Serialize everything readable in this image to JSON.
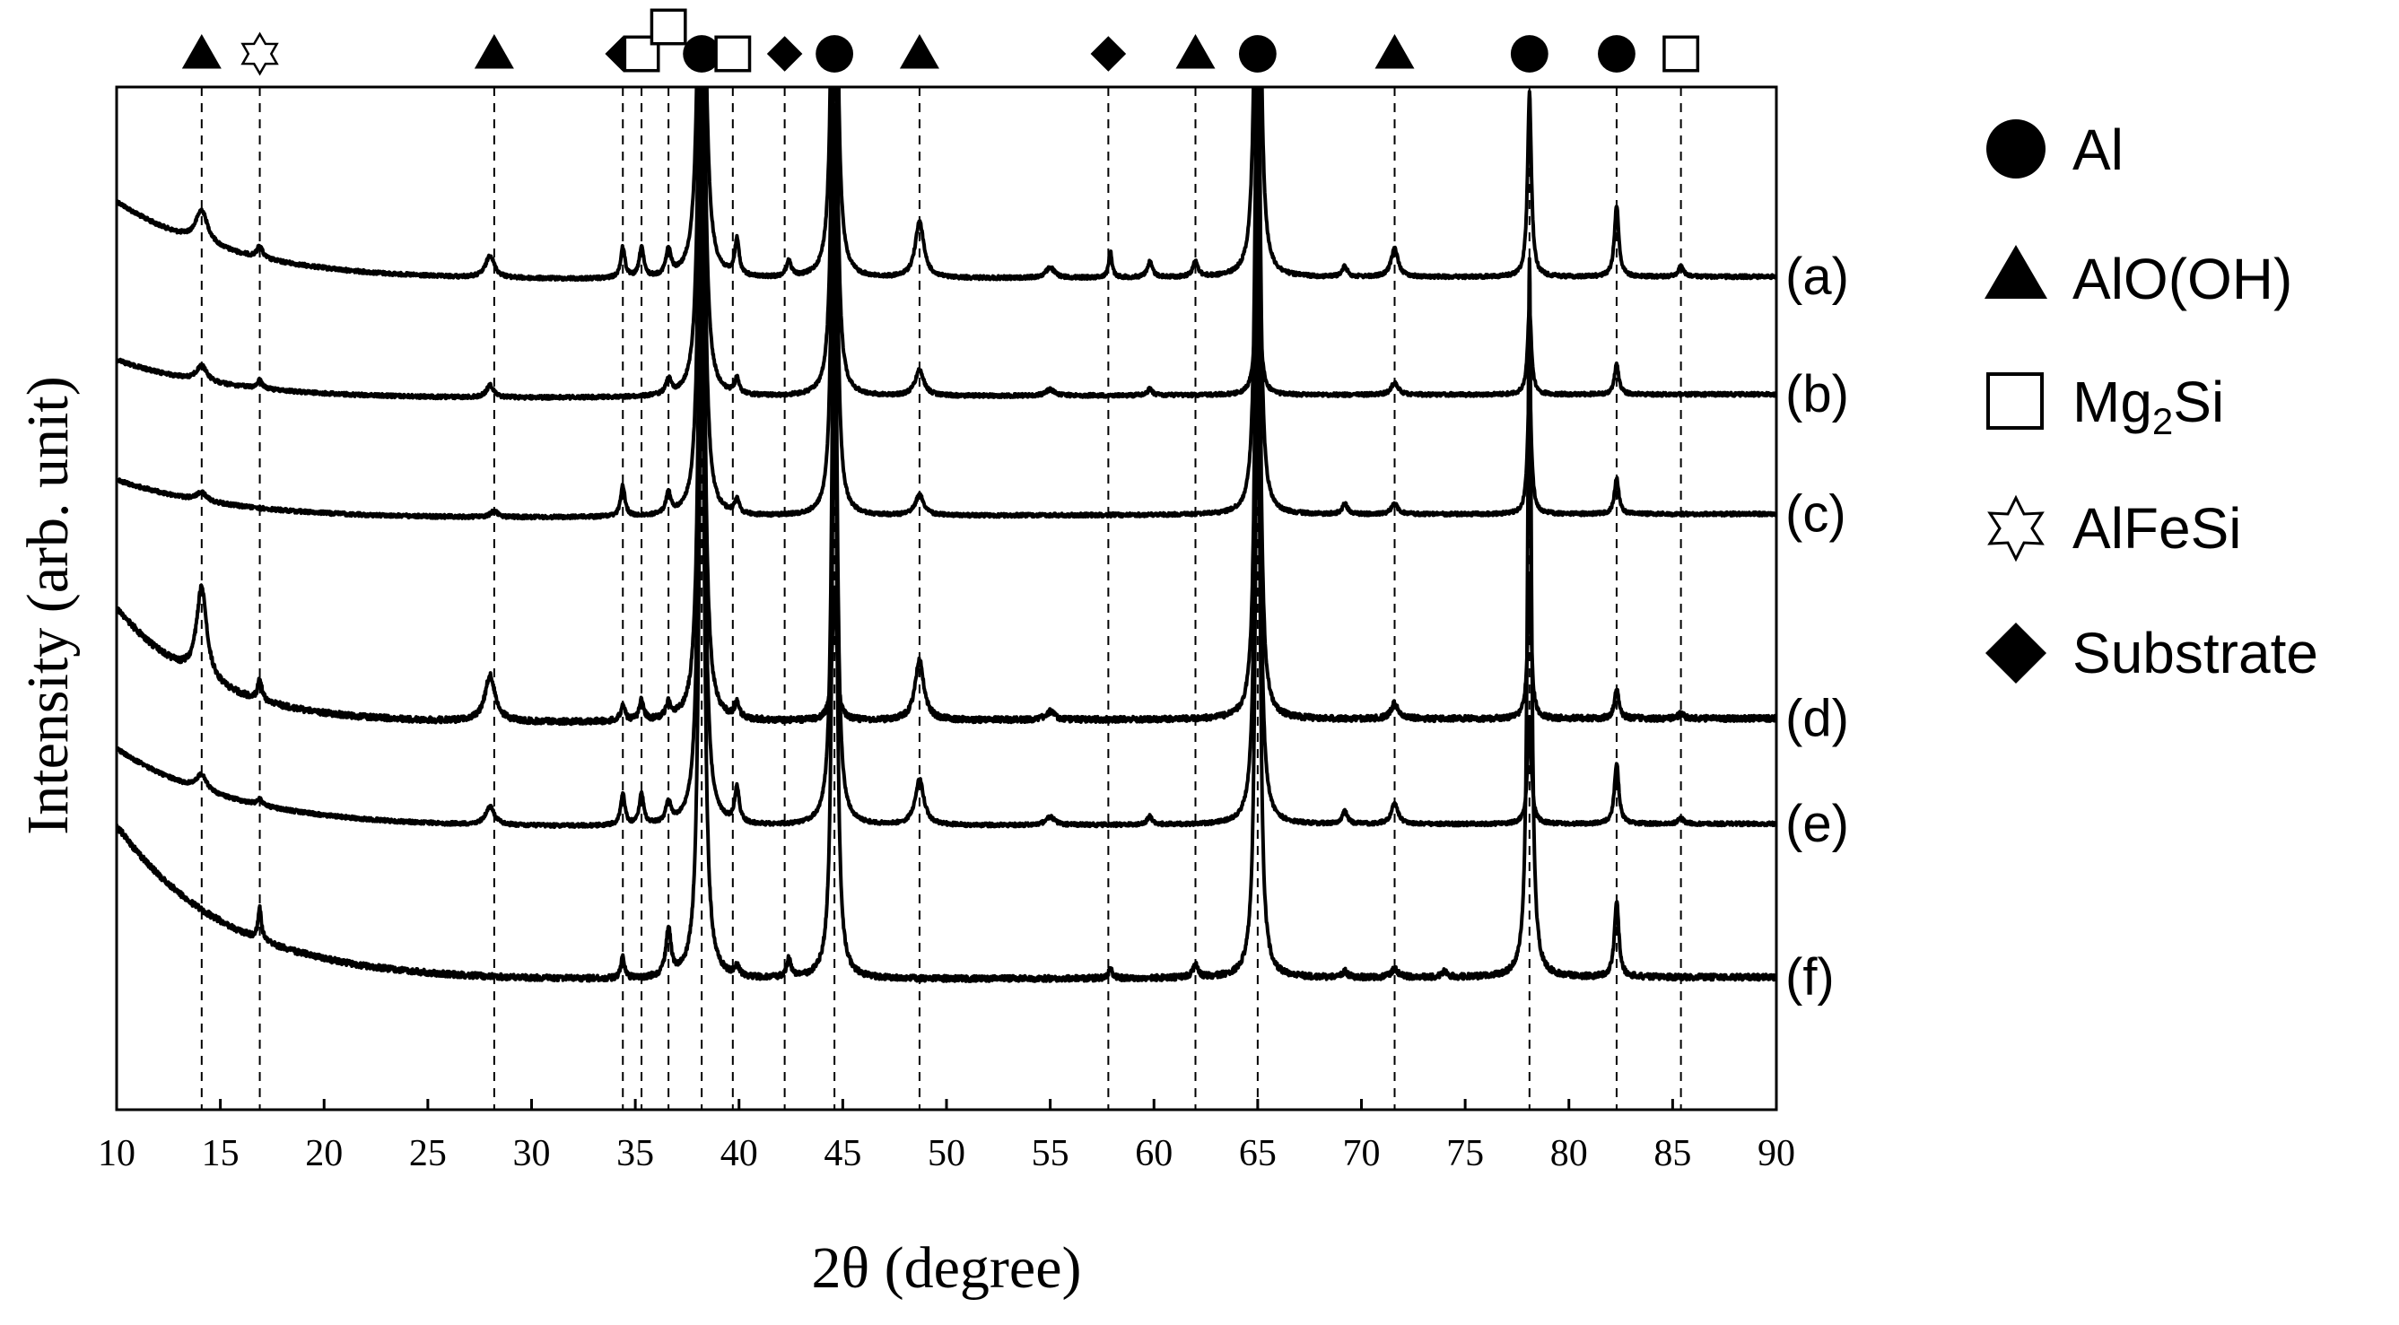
{
  "chart_data": {
    "type": "line",
    "title": "",
    "xlabel": "2θ (degree)",
    "ylabel": "Intensity (arb. unit)",
    "xlim": [
      10,
      90
    ],
    "xticks": [
      "10",
      "15",
      "20",
      "25",
      "30",
      "35",
      "40",
      "45",
      "50",
      "55",
      "60",
      "65",
      "70",
      "75",
      "80",
      "85",
      "90"
    ],
    "ylim": [
      0,
      1
    ],
    "grid": false,
    "legend_position": "right",
    "legend": [
      {
        "marker": "circle",
        "label": "Al"
      },
      {
        "marker": "triangle",
        "label": "AlO(OH)"
      },
      {
        "marker": "square-open",
        "label_main": "Mg",
        "label_sub": "2",
        "label_tail": "Si"
      },
      {
        "marker": "star-open",
        "label": "AlFeSi"
      },
      {
        "marker": "diamond",
        "label": "Substrate"
      }
    ],
    "phase_markers": [
      {
        "x": 14.1,
        "marker": "triangle"
      },
      {
        "x": 16.9,
        "marker": "star-open"
      },
      {
        "x": 28.2,
        "marker": "triangle"
      },
      {
        "x": 34.4,
        "marker": "diamond"
      },
      {
        "x": 35.3,
        "marker": "square-open"
      },
      {
        "x": 36.6,
        "marker": "square-open",
        "raised": true
      },
      {
        "x": 38.2,
        "marker": "circle"
      },
      {
        "x": 39.7,
        "marker": "square-open"
      },
      {
        "x": 42.2,
        "marker": "diamond"
      },
      {
        "x": 44.6,
        "marker": "circle"
      },
      {
        "x": 48.7,
        "marker": "triangle"
      },
      {
        "x": 57.8,
        "marker": "diamond"
      },
      {
        "x": 62.0,
        "marker": "triangle"
      },
      {
        "x": 65.0,
        "marker": "circle"
      },
      {
        "x": 71.6,
        "marker": "triangle"
      },
      {
        "x": 78.1,
        "marker": "circle"
      },
      {
        "x": 82.3,
        "marker": "circle"
      },
      {
        "x": 85.4,
        "marker": "square-open"
      }
    ],
    "reference_lines_x": [
      14.1,
      16.9,
      28.2,
      34.4,
      35.3,
      36.6,
      38.2,
      39.7,
      42.2,
      44.6,
      48.7,
      57.8,
      62.0,
      65.0,
      71.6,
      78.1,
      82.3,
      85.4
    ],
    "series": [
      {
        "name": "(a)",
        "baseline": 0.185,
        "background": {
          "amp": 0.085,
          "decay": 6.0
        },
        "peaks": [
          [
            14.1,
            0.032,
            0.7
          ],
          [
            16.9,
            0.012,
            0.3
          ],
          [
            28.0,
            0.022,
            0.5
          ],
          [
            34.4,
            0.03,
            0.25
          ],
          [
            35.3,
            0.03,
            0.25
          ],
          [
            36.6,
            0.025,
            0.3
          ],
          [
            38.2,
            0.7,
            0.3
          ],
          [
            39.9,
            0.035,
            0.25
          ],
          [
            42.4,
            0.015,
            0.3
          ],
          [
            44.6,
            0.7,
            0.25
          ],
          [
            48.7,
            0.055,
            0.5
          ],
          [
            55.0,
            0.01,
            0.5
          ],
          [
            57.9,
            0.025,
            0.2
          ],
          [
            59.8,
            0.015,
            0.3
          ],
          [
            62.0,
            0.015,
            0.3
          ],
          [
            65.0,
            0.7,
            0.25
          ],
          [
            69.2,
            0.01,
            0.3
          ],
          [
            71.6,
            0.028,
            0.4
          ],
          [
            78.1,
            0.18,
            0.22
          ],
          [
            82.3,
            0.07,
            0.25
          ],
          [
            85.4,
            0.01,
            0.3
          ]
        ]
      },
      {
        "name": "(b)",
        "baseline": 0.3,
        "background": {
          "amp": 0.045,
          "decay": 6.0
        },
        "peaks": [
          [
            14.1,
            0.015,
            0.6
          ],
          [
            16.9,
            0.008,
            0.3
          ],
          [
            28.0,
            0.012,
            0.4
          ],
          [
            36.6,
            0.015,
            0.3
          ],
          [
            38.2,
            0.6,
            0.3
          ],
          [
            39.9,
            0.015,
            0.25
          ],
          [
            44.6,
            0.6,
            0.25
          ],
          [
            48.7,
            0.025,
            0.5
          ],
          [
            55.0,
            0.006,
            0.5
          ],
          [
            59.8,
            0.006,
            0.3
          ],
          [
            65.0,
            0.16,
            0.25
          ],
          [
            71.6,
            0.012,
            0.4
          ],
          [
            78.1,
            0.085,
            0.22
          ],
          [
            82.3,
            0.03,
            0.25
          ]
        ]
      },
      {
        "name": "(c)",
        "baseline": 0.417,
        "background": {
          "amp": 0.045,
          "decay": 6.0
        },
        "peaks": [
          [
            14.1,
            0.008,
            0.6
          ],
          [
            28.2,
            0.006,
            0.4
          ],
          [
            34.4,
            0.03,
            0.25
          ],
          [
            36.6,
            0.02,
            0.3
          ],
          [
            38.2,
            0.6,
            0.3
          ],
          [
            39.9,
            0.015,
            0.25
          ],
          [
            44.6,
            0.6,
            0.25
          ],
          [
            48.7,
            0.02,
            0.5
          ],
          [
            65.0,
            0.6,
            0.25
          ],
          [
            69.2,
            0.01,
            0.3
          ],
          [
            71.6,
            0.01,
            0.4
          ],
          [
            78.1,
            0.125,
            0.22
          ],
          [
            82.3,
            0.035,
            0.25
          ]
        ]
      },
      {
        "name": "(d)",
        "baseline": 0.617,
        "background": {
          "amp": 0.12,
          "decay": 4.5
        },
        "peaks": [
          [
            14.1,
            0.09,
            0.6
          ],
          [
            16.9,
            0.02,
            0.25
          ],
          [
            28.0,
            0.045,
            0.6
          ],
          [
            34.4,
            0.015,
            0.25
          ],
          [
            35.3,
            0.02,
            0.25
          ],
          [
            36.6,
            0.015,
            0.3
          ],
          [
            38.2,
            0.7,
            0.3
          ],
          [
            39.9,
            0.015,
            0.25
          ],
          [
            44.6,
            0.13,
            0.25
          ],
          [
            48.7,
            0.06,
            0.5
          ],
          [
            55.0,
            0.008,
            0.5
          ],
          [
            65.0,
            0.7,
            0.25
          ],
          [
            71.6,
            0.015,
            0.4
          ],
          [
            78.1,
            0.135,
            0.22
          ],
          [
            82.3,
            0.03,
            0.25
          ],
          [
            85.4,
            0.005,
            0.3
          ]
        ]
      },
      {
        "name": "(e)",
        "baseline": 0.72,
        "background": {
          "amp": 0.085,
          "decay": 6.0
        },
        "peaks": [
          [
            14.1,
            0.015,
            0.6
          ],
          [
            16.9,
            0.006,
            0.3
          ],
          [
            28.0,
            0.018,
            0.5
          ],
          [
            34.4,
            0.03,
            0.25
          ],
          [
            35.3,
            0.03,
            0.25
          ],
          [
            36.6,
            0.02,
            0.3
          ],
          [
            38.2,
            0.7,
            0.3
          ],
          [
            39.9,
            0.035,
            0.25
          ],
          [
            44.6,
            0.7,
            0.25
          ],
          [
            48.7,
            0.045,
            0.5
          ],
          [
            55.0,
            0.008,
            0.5
          ],
          [
            59.8,
            0.008,
            0.3
          ],
          [
            65.0,
            0.7,
            0.25
          ],
          [
            69.2,
            0.012,
            0.3
          ],
          [
            71.6,
            0.02,
            0.4
          ],
          [
            78.1,
            0.105,
            0.22
          ],
          [
            82.3,
            0.06,
            0.25
          ],
          [
            85.4,
            0.006,
            0.3
          ]
        ]
      },
      {
        "name": "(f)",
        "baseline": 0.87,
        "background": {
          "amp": 0.16,
          "decay": 5.5
        },
        "peaks": [
          [
            16.9,
            0.03,
            0.2
          ],
          [
            34.4,
            0.022,
            0.2
          ],
          [
            36.6,
            0.045,
            0.3
          ],
          [
            38.2,
            0.7,
            0.3
          ],
          [
            39.9,
            0.01,
            0.25
          ],
          [
            42.4,
            0.018,
            0.25
          ],
          [
            44.6,
            0.7,
            0.25
          ],
          [
            57.9,
            0.01,
            0.2
          ],
          [
            62.0,
            0.012,
            0.3
          ],
          [
            65.0,
            0.7,
            0.25
          ],
          [
            69.2,
            0.006,
            0.3
          ],
          [
            71.6,
            0.008,
            0.4
          ],
          [
            74.0,
            0.006,
            0.3
          ],
          [
            78.1,
            0.7,
            0.22
          ],
          [
            82.3,
            0.075,
            0.25
          ]
        ]
      }
    ]
  }
}
